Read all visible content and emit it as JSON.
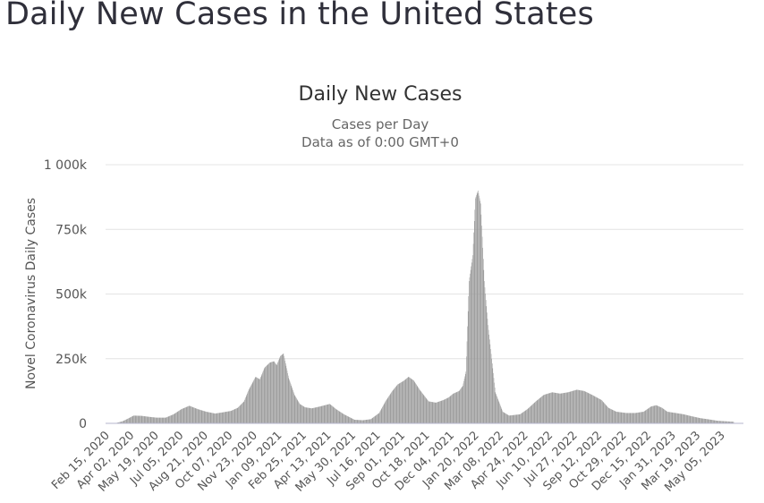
{
  "page": {
    "title": "Daily New Cases in the United States"
  },
  "chart_data": {
    "type": "bar",
    "title": "Daily New Cases",
    "subtitle_line1": "Cases per Day",
    "subtitle_line2": "Data as of 0:00 GMT+0",
    "ylabel": "Novel Coronavirus Daily Cases",
    "xlabel": "",
    "ylim": [
      0,
      1000000
    ],
    "yticks": [
      {
        "value": 0,
        "label": "0"
      },
      {
        "value": 250000,
        "label": "250k"
      },
      {
        "value": 500000,
        "label": "500k"
      },
      {
        "value": 750000,
        "label": "750k"
      },
      {
        "value": 1000000,
        "label": "1 000k"
      }
    ],
    "x_range": [
      "2020-02-15",
      "2023-05-21"
    ],
    "xticks": [
      "Feb 15, 2020",
      "Apr 02, 2020",
      "May 19, 2020",
      "Jul 05, 2020",
      "Aug 21, 2020",
      "Oct 07, 2020",
      "Nov 23, 2020",
      "Jan 09, 2021",
      "Feb 25, 2021",
      "Apr 13, 2021",
      "May 30, 2021",
      "Jul 16, 2021",
      "Sep 01, 2021",
      "Oct 18, 2021",
      "Dec 04, 2021",
      "Jan 20, 2022",
      "Mar 08, 2022",
      "Apr 24, 2022",
      "Jun 10, 2022",
      "Jul 27, 2022",
      "Sep 12, 2022",
      "Oct 29, 2022",
      "Dec 15, 2022",
      "Jan 31, 2023",
      "Mar 19, 2023",
      "May 05, 2023"
    ],
    "grid": true,
    "legend": "none",
    "bar_color": "#999999",
    "series": [
      {
        "x": [
          "2020-02-15",
          "2020-03-01",
          "2020-03-15",
          "2020-03-25",
          "2020-04-05",
          "2020-04-20",
          "2020-05-05",
          "2020-05-19",
          "2020-06-05",
          "2020-06-20",
          "2020-07-05",
          "2020-07-20",
          "2020-08-05",
          "2020-08-21",
          "2020-09-07",
          "2020-09-20",
          "2020-10-07",
          "2020-10-20",
          "2020-11-01",
          "2020-11-10",
          "2020-11-23",
          "2020-12-01",
          "2020-12-10",
          "2020-12-20",
          "2020-12-28",
          "2021-01-02",
          "2021-01-09",
          "2021-01-15",
          "2021-01-25",
          "2021-02-05",
          "2021-02-15",
          "2021-02-25",
          "2021-03-10",
          "2021-03-25",
          "2021-04-13",
          "2021-04-25",
          "2021-05-10",
          "2021-05-30",
          "2021-06-15",
          "2021-06-30",
          "2021-07-16",
          "2021-07-28",
          "2021-08-10",
          "2021-08-20",
          "2021-09-01",
          "2021-09-10",
          "2021-09-20",
          "2021-10-01",
          "2021-10-18",
          "2021-11-01",
          "2021-11-15",
          "2021-11-25",
          "2021-12-04",
          "2021-12-15",
          "2021-12-22",
          "2021-12-28",
          "2022-01-03",
          "2022-01-10",
          "2022-01-15",
          "2022-01-20",
          "2022-01-25",
          "2022-02-01",
          "2022-02-08",
          "2022-02-15",
          "2022-02-22",
          "2022-03-08",
          "2022-03-20",
          "2022-04-10",
          "2022-04-24",
          "2022-05-10",
          "2022-05-25",
          "2022-06-10",
          "2022-06-25",
          "2022-07-10",
          "2022-07-27",
          "2022-08-10",
          "2022-08-25",
          "2022-09-12",
          "2022-09-25",
          "2022-10-10",
          "2022-10-29",
          "2022-11-15",
          "2022-12-01",
          "2022-12-15",
          "2022-12-25",
          "2023-01-05",
          "2023-01-15",
          "2023-01-31",
          "2023-02-15",
          "2023-03-01",
          "2023-03-19",
          "2023-04-05",
          "2023-04-20",
          "2023-05-05",
          "2023-05-21"
        ],
        "values": [
          0,
          300,
          8000,
          18000,
          30000,
          29000,
          25000,
          22000,
          22000,
          35000,
          55000,
          68000,
          55000,
          45000,
          38000,
          42000,
          48000,
          60000,
          85000,
          130000,
          180000,
          170000,
          215000,
          235000,
          240000,
          225000,
          260000,
          270000,
          175000,
          110000,
          75000,
          62000,
          58000,
          65000,
          75000,
          55000,
          35000,
          14000,
          12000,
          16000,
          40000,
          85000,
          125000,
          150000,
          165000,
          180000,
          165000,
          130000,
          85000,
          80000,
          90000,
          100000,
          115000,
          125000,
          145000,
          200000,
          550000,
          650000,
          870000,
          900000,
          850000,
          550000,
          380000,
          250000,
          120000,
          45000,
          30000,
          35000,
          55000,
          85000,
          110000,
          120000,
          115000,
          120000,
          130000,
          125000,
          110000,
          90000,
          60000,
          45000,
          40000,
          40000,
          45000,
          65000,
          70000,
          60000,
          45000,
          40000,
          35000,
          28000,
          20000,
          15000,
          10000,
          8000,
          6000
        ]
      }
    ]
  }
}
